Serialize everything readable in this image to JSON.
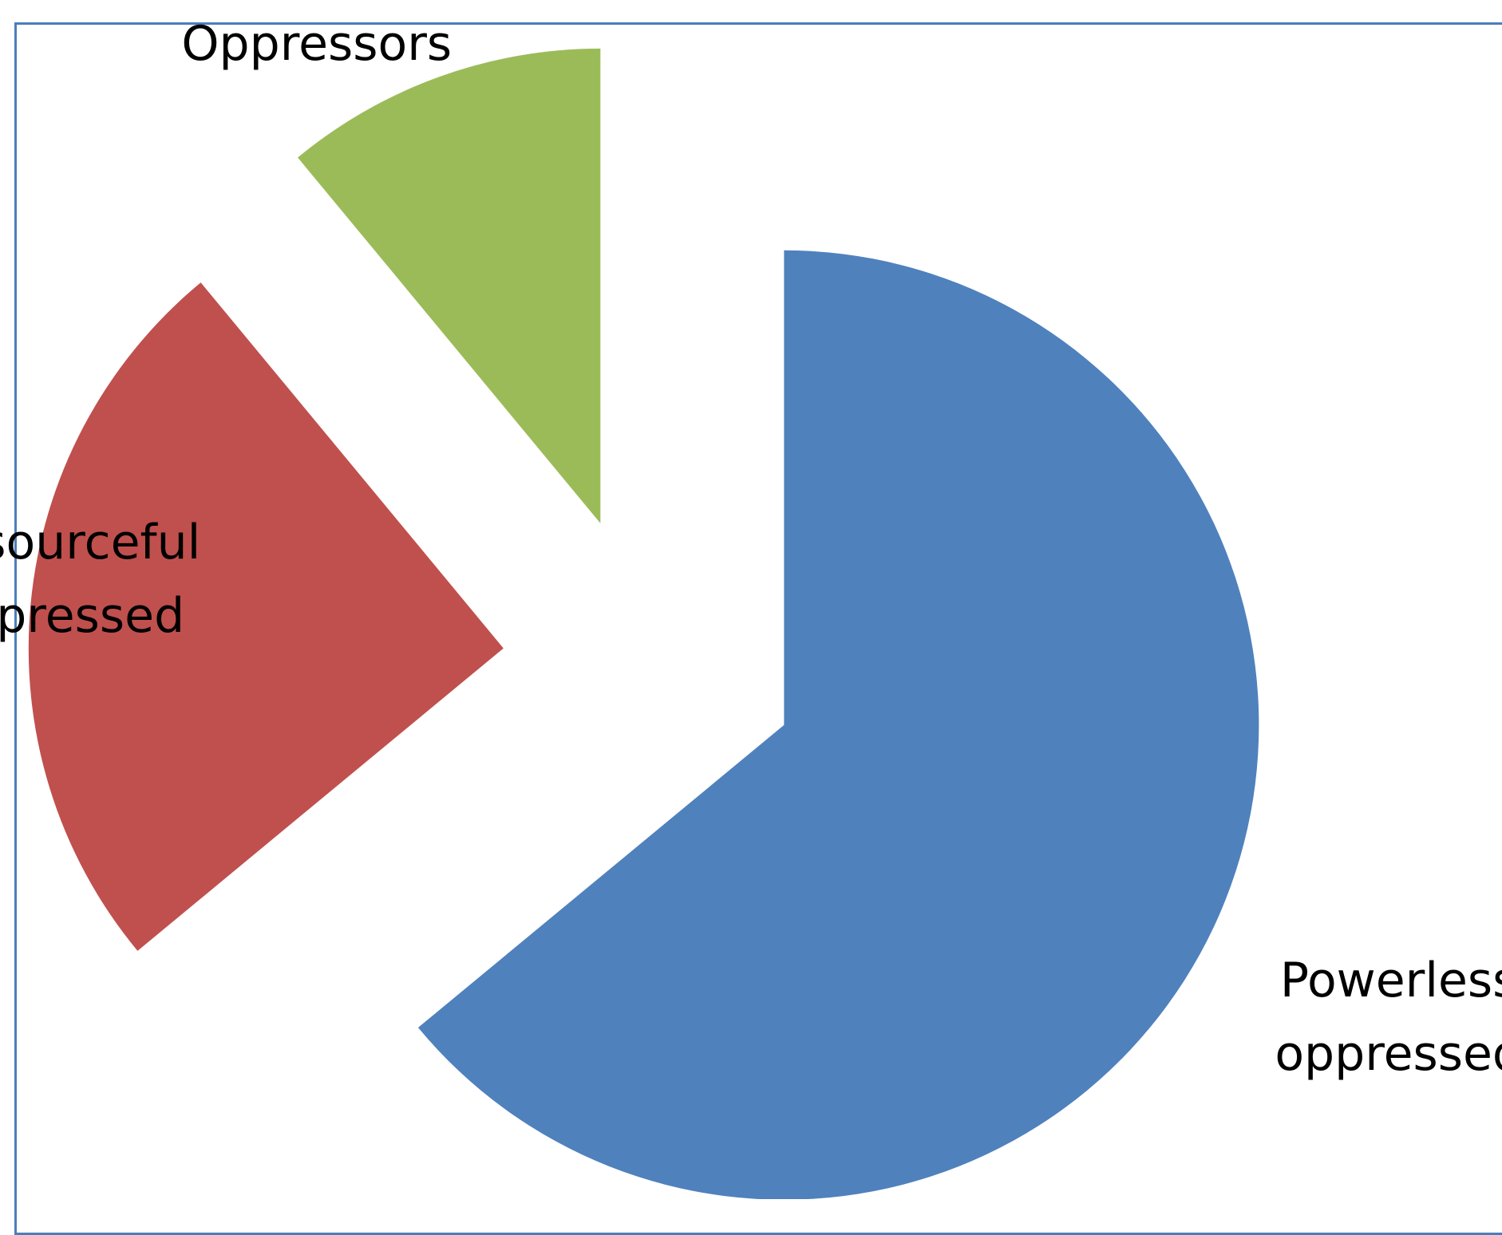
{
  "chart_data": {
    "type": "pie",
    "exploded": true,
    "categories": [
      "Powerless oppressed",
      "Resourceful oppressed",
      "Oppressors"
    ],
    "values": [
      64,
      25,
      11
    ],
    "label_lines": [
      [
        "Powerless",
        "oppressed"
      ],
      [
        "Resourceful",
        "oppressed"
      ],
      [
        "Oppressors"
      ]
    ],
    "colors": [
      "#4f81bd",
      "#c0504d",
      "#9bbb59"
    ],
    "start_angle_deg": 0,
    "direction": "clockwise",
    "legend": "none",
    "title": ""
  }
}
